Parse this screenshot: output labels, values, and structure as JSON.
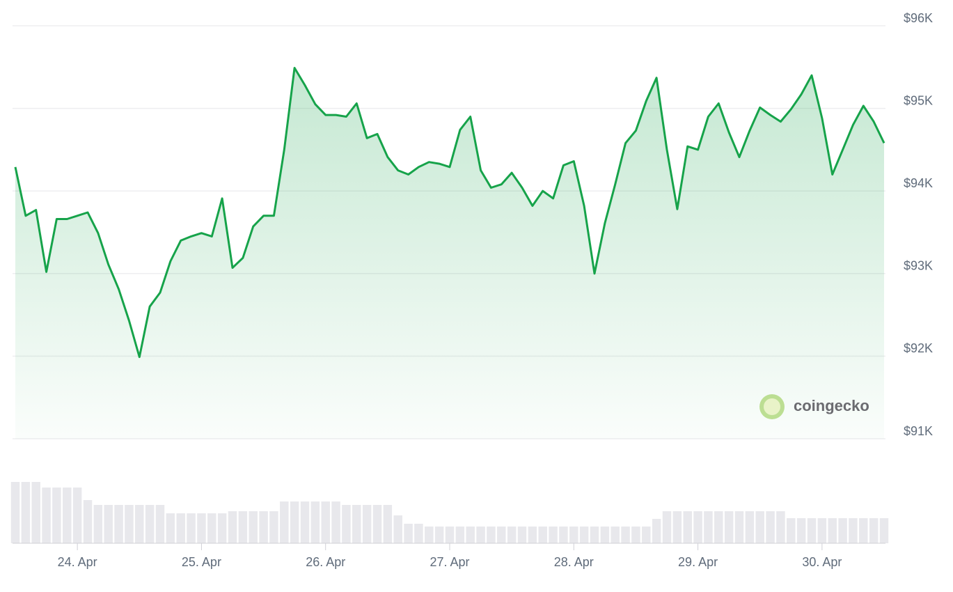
{
  "chart_data": {
    "type": "area",
    "categories": [
      null,
      null,
      null,
      null,
      null,
      null,
      "24. Apr",
      null,
      null,
      null,
      null,
      null,
      null,
      null,
      null,
      null,
      null,
      null,
      "25. Apr",
      null,
      null,
      null,
      null,
      null,
      null,
      null,
      null,
      null,
      null,
      null,
      "26. Apr",
      null,
      null,
      null,
      null,
      null,
      null,
      null,
      null,
      null,
      null,
      null,
      "27. Apr",
      null,
      null,
      null,
      null,
      null,
      null,
      null,
      null,
      null,
      null,
      null,
      "28. Apr",
      null,
      null,
      null,
      null,
      null,
      null,
      null,
      null,
      null,
      null,
      null,
      "29. Apr",
      null,
      null,
      null,
      null,
      null,
      null,
      null,
      null,
      null,
      null,
      null,
      "30. Apr",
      null,
      null,
      null,
      null,
      null,
      null
    ],
    "values": [
      94290,
      93700,
      93770,
      93020,
      93660,
      93660,
      93700,
      93740,
      93490,
      93110,
      92810,
      92430,
      91990,
      92600,
      92770,
      93150,
      93400,
      93450,
      93490,
      93450,
      93910,
      93070,
      93190,
      93570,
      93700,
      93700,
      94500,
      95490,
      95280,
      95050,
      94920,
      94920,
      94900,
      95060,
      94640,
      94690,
      94410,
      94250,
      94200,
      94290,
      94350,
      94330,
      94290,
      94740,
      94900,
      94250,
      94040,
      94080,
      94220,
      94040,
      93820,
      94000,
      93910,
      94310,
      94360,
      93820,
      93000,
      93610,
      94080,
      94580,
      94730,
      95090,
      95370,
      94500,
      93780,
      94540,
      94500,
      94900,
      95060,
      94710,
      94410,
      94730,
      95010,
      94920,
      94840,
      94990,
      95170,
      95400,
      94880,
      94200,
      94500,
      94800,
      95030,
      94840,
      94580
    ],
    "color": "#16a34a",
    "volume": [
      88,
      88,
      88,
      80,
      80,
      80,
      80,
      62,
      55,
      55,
      55,
      55,
      55,
      55,
      55,
      43,
      43,
      43,
      43,
      43,
      43,
      46,
      46,
      46,
      46,
      46,
      60,
      60,
      60,
      60,
      60,
      60,
      55,
      55,
      55,
      55,
      55,
      40,
      28,
      28,
      24,
      24,
      24,
      24,
      24,
      24,
      24,
      24,
      24,
      24,
      24,
      24,
      24,
      24,
      24,
      24,
      24,
      24,
      24,
      24,
      24,
      24,
      35,
      46,
      46,
      46,
      46,
      46,
      46,
      46,
      46,
      46,
      46,
      46,
      46,
      36,
      36,
      36,
      36,
      36,
      36,
      36,
      36,
      36,
      36
    ],
    "volume_color": "#e8e8ec",
    "ylim": [
      91000,
      96000
    ],
    "yticks": [
      {
        "value": 91000,
        "label": "$91K"
      },
      {
        "value": 92000,
        "label": "$92K"
      },
      {
        "value": 93000,
        "label": "$93K"
      },
      {
        "value": 94000,
        "label": "$94K"
      },
      {
        "value": 95000,
        "label": "$95K"
      },
      {
        "value": 96000,
        "label": "$96K"
      }
    ],
    "grid": true,
    "watermark": "coingecko"
  }
}
